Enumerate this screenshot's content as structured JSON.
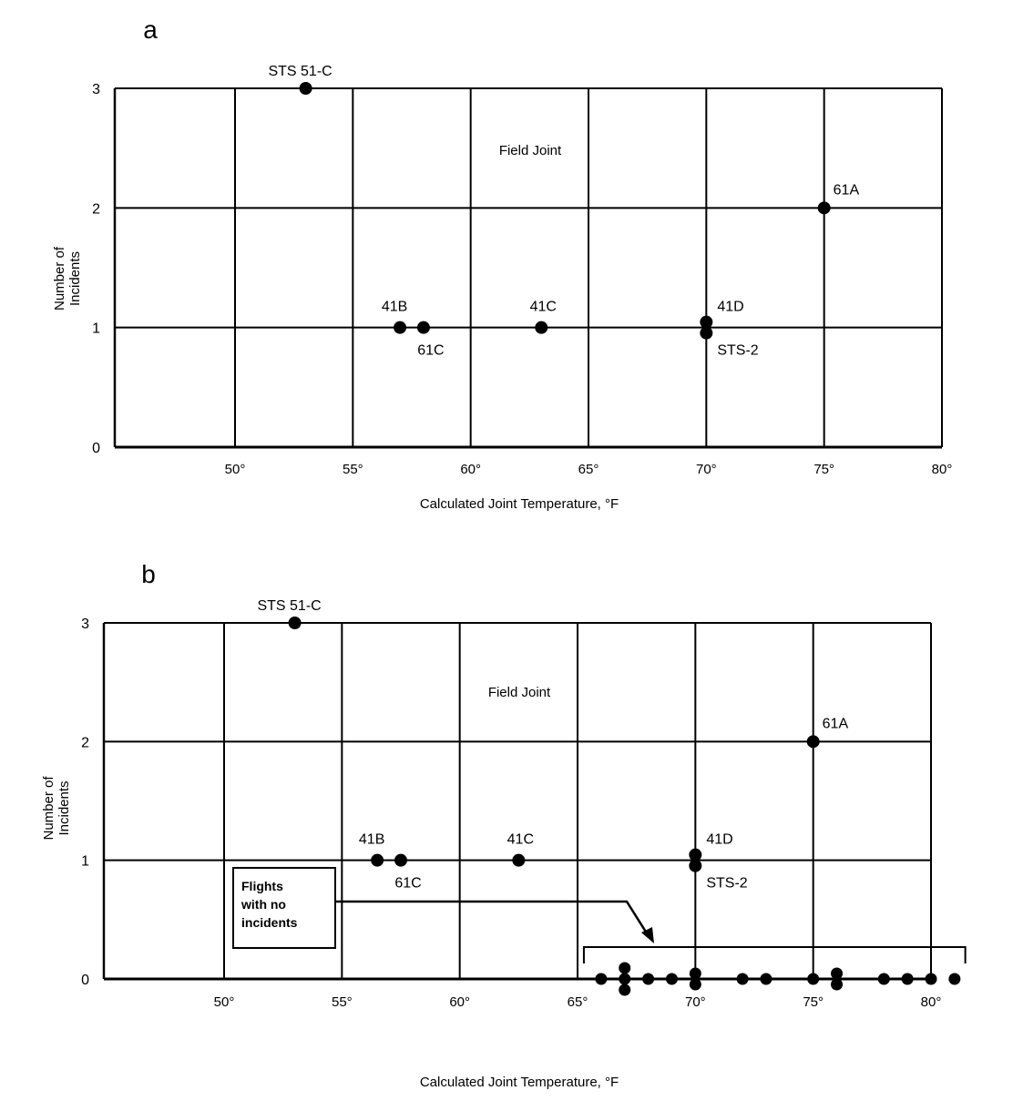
{
  "chart_data": [
    {
      "id": "a",
      "type": "scatter",
      "panel_label": "a",
      "title": "Field Joint",
      "xlabel": "Calculated Joint Temperature, °F",
      "ylabel": [
        "Number of",
        "Incidents"
      ],
      "xlim": [
        45,
        80
      ],
      "ylim": [
        0,
        3
      ],
      "xticks": [
        50,
        55,
        60,
        65,
        70,
        75,
        80
      ],
      "xtick_labels": [
        "50°",
        "55°",
        "60°",
        "65°",
        "70°",
        "75°",
        "80°"
      ],
      "yticks": [
        0,
        1,
        2,
        3
      ],
      "ytick_labels": [
        "0",
        "1",
        "2",
        "3"
      ],
      "grid": true,
      "points": [
        {
          "label": "STS 51-C",
          "x": 53,
          "y": 3
        },
        {
          "label": "41B",
          "x": 57,
          "y": 1
        },
        {
          "label": "61C",
          "x": 58,
          "y": 1
        },
        {
          "label": "41C",
          "x": 63,
          "y": 1
        },
        {
          "label": "41D",
          "x": 70,
          "y": 1
        },
        {
          "label": "STS-2",
          "x": 70,
          "y": 1
        },
        {
          "label": "61A",
          "x": 75,
          "y": 2
        }
      ]
    },
    {
      "id": "b",
      "type": "scatter",
      "panel_label": "b",
      "title": "Field Joint",
      "xlabel": "Calculated Joint Temperature, °F",
      "ylabel": [
        "Number of",
        "Incidents"
      ],
      "xlim": [
        45,
        80
      ],
      "ylim": [
        0,
        3
      ],
      "xticks": [
        50,
        55,
        60,
        65,
        70,
        75,
        80
      ],
      "xtick_labels": [
        "50°",
        "55°",
        "60°",
        "65°",
        "70°",
        "75°",
        "80°"
      ],
      "yticks": [
        0,
        1,
        2,
        3
      ],
      "ytick_labels": [
        "0",
        "1",
        "2",
        "3"
      ],
      "grid": true,
      "annotation": [
        "Flights",
        "with no",
        "incidents"
      ],
      "points": [
        {
          "label": "STS 51-C",
          "x": 53,
          "y": 3
        },
        {
          "label": "41B",
          "x": 56.5,
          "y": 1
        },
        {
          "label": "61C",
          "x": 57.5,
          "y": 1
        },
        {
          "label": "41C",
          "x": 62.5,
          "y": 1
        },
        {
          "label": "41D",
          "x": 70,
          "y": 1
        },
        {
          "label": "STS-2",
          "x": 70,
          "y": 1
        },
        {
          "label": "61A",
          "x": 75,
          "y": 2
        }
      ],
      "zero_incident_points": [
        {
          "x": 66,
          "y": 0,
          "count": 1
        },
        {
          "x": 67,
          "y": 0,
          "count": 3
        },
        {
          "x": 68,
          "y": 0,
          "count": 1
        },
        {
          "x": 69,
          "y": 0,
          "count": 1
        },
        {
          "x": 70,
          "y": 0,
          "count": 2
        },
        {
          "x": 72,
          "y": 0,
          "count": 1
        },
        {
          "x": 73,
          "y": 0,
          "count": 1
        },
        {
          "x": 75,
          "y": 0,
          "count": 1
        },
        {
          "x": 76,
          "y": 0,
          "count": 2
        },
        {
          "x": 78,
          "y": 0,
          "count": 1
        },
        {
          "x": 79,
          "y": 0,
          "count": 1
        },
        {
          "x": 80,
          "y": 0,
          "count": 1
        },
        {
          "x": 81,
          "y": 0,
          "count": 1
        }
      ]
    }
  ]
}
